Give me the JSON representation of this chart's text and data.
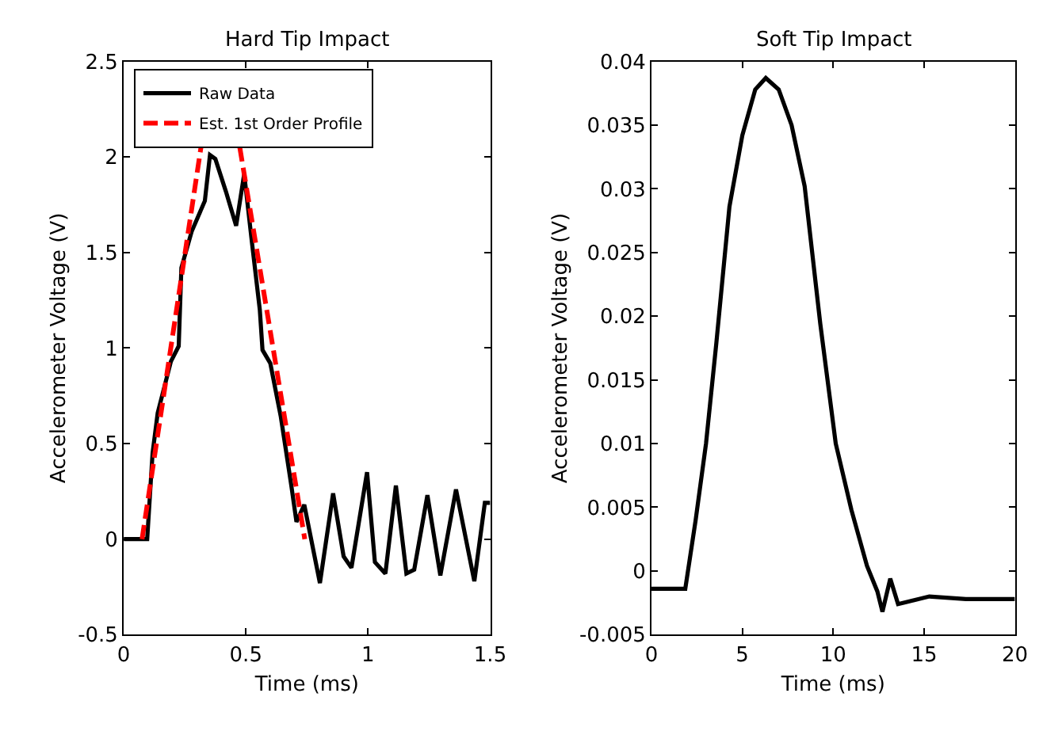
{
  "chart_data": [
    {
      "type": "line",
      "title": "Hard Tip Impact",
      "xlabel": "Time (ms)",
      "ylabel": "Accelerometer Voltage (V)",
      "xlim": [
        0,
        1.5
      ],
      "xticks": [
        0,
        0.5,
        1,
        1.5
      ],
      "ylim": [
        -0.5,
        2.5
      ],
      "yticks": [
        -0.5,
        0,
        0.5,
        1,
        1.5,
        2,
        2.5
      ],
      "legend": "top",
      "marker": "none",
      "series": [
        {
          "name": "Raw Data",
          "color": "#000000",
          "line_style": "solid",
          "x": [
            0,
            0.096,
            0.118,
            0.139,
            0.193,
            0.225,
            0.236,
            0.278,
            0.332,
            0.353,
            0.375,
            0.418,
            0.46,
            0.493,
            0.525,
            0.557,
            0.568,
            0.6,
            0.643,
            0.686,
            0.707,
            0.739,
            0.803,
            0.857,
            0.9,
            0.932,
            0.996,
            1.028,
            1.071,
            1.114,
            1.157,
            1.189,
            1.243,
            1.296,
            1.36,
            1.435,
            1.478,
            1.5
          ],
          "values": [
            0,
            0,
            0.45,
            0.66,
            0.93,
            1.01,
            1.42,
            1.61,
            1.77,
            2.01,
            1.99,
            1.82,
            1.64,
            1.91,
            1.55,
            1.2,
            0.99,
            0.92,
            0.64,
            0.28,
            0.09,
            0.18,
            -0.23,
            0.24,
            -0.09,
            -0.15,
            0.35,
            -0.12,
            -0.18,
            0.28,
            -0.18,
            -0.16,
            0.23,
            -0.19,
            0.26,
            -0.22,
            0.19,
            0.19
          ]
        },
        {
          "name": "Est. 1st Order Profile",
          "color": "#ff0000",
          "line_style": "dashed",
          "x": [
            0.075,
            0.316,
            0.4,
            0.475,
            0.741
          ],
          "values": [
            0,
            2.05,
            null,
            2.05,
            0
          ]
        }
      ]
    },
    {
      "type": "line",
      "title": "Soft Tip Impact",
      "xlabel": "Time (ms)",
      "ylabel": "Accelerometer Voltage (V)",
      "xlim": [
        0,
        20
      ],
      "xticks": [
        0,
        5,
        10,
        15,
        20
      ],
      "ylim": [
        -0.005,
        0.04
      ],
      "yticks": [
        -0.005,
        0,
        0.005,
        0.01,
        0.015,
        0.02,
        0.025,
        0.03,
        0.035,
        0.04
      ],
      "legend": false,
      "marker": "none",
      "series": [
        {
          "color": "#000000",
          "line_style": "solid",
          "x": [
            0,
            1.86,
            2.43,
            3.0,
            3.57,
            4.29,
            5.0,
            5.71,
            6.29,
            7.0,
            7.71,
            8.43,
            9.29,
            10.14,
            11.0,
            11.86,
            12.43,
            12.71,
            13.14,
            13.57,
            15.29,
            17.3,
            20
          ],
          "values": [
            -0.0014,
            -0.0014,
            0.004,
            0.01,
            0.0179,
            0.0286,
            0.0342,
            0.0378,
            0.0387,
            0.0378,
            0.035,
            0.0302,
            0.0194,
            0.01,
            0.0048,
            0.0004,
            -0.0016,
            -0.0032,
            -0.0006,
            -0.0026,
            -0.002,
            -0.0022,
            -0.0022
          ]
        }
      ]
    }
  ]
}
